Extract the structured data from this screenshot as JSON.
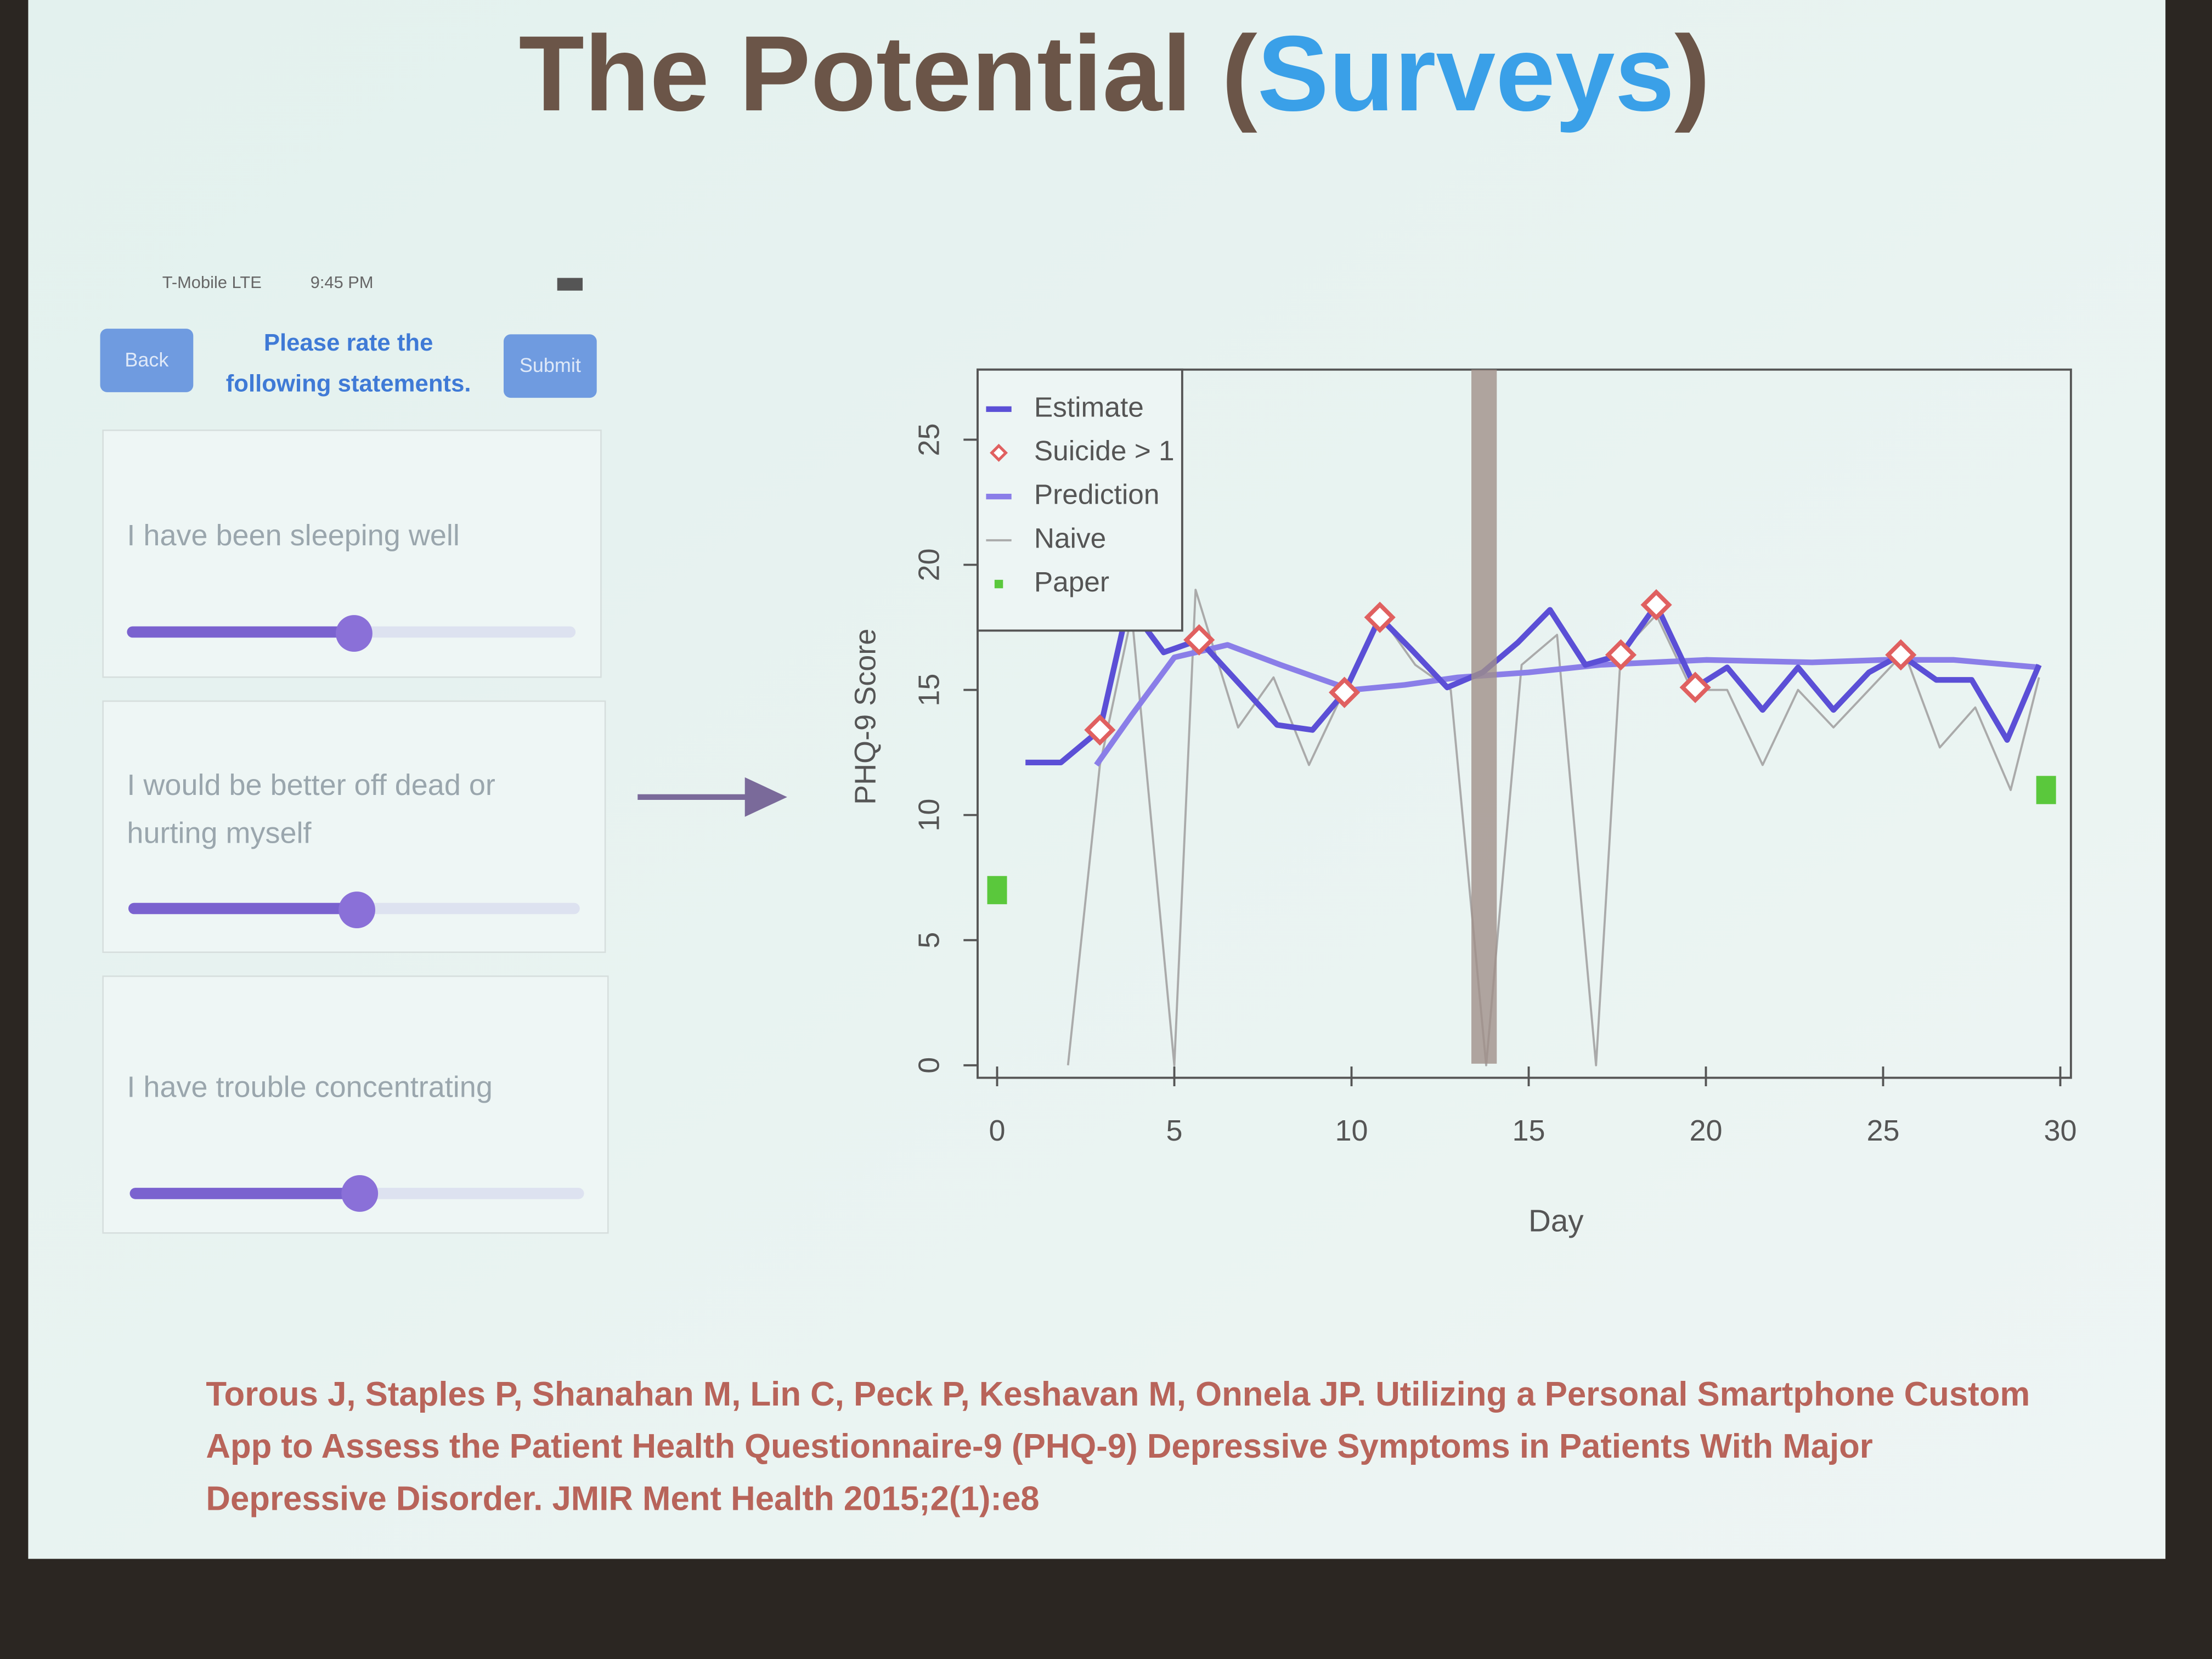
{
  "title_parts": [
    "The Potential (",
    "Surveys",
    ")"
  ],
  "phone": {
    "status": [
      "T-Mobile  LTE",
      "9:45 PM"
    ],
    "back": "Back",
    "submit": "Submit",
    "header": [
      "Please rate the",
      "following statements."
    ],
    "items": [
      [
        "I have been sleeping well"
      ],
      [
        "I would be better off dead or",
        "hurting myself"
      ],
      [
        "I have trouble concentrating"
      ]
    ]
  },
  "chart_data": {
    "type": "line",
    "xlabel": "Day",
    "ylabel": "PHQ-9 Score",
    "xlim": [
      -0.55,
      30.3
    ],
    "ylim": [
      -0.5,
      27.8
    ],
    "xticks": [
      0,
      5,
      10,
      15,
      20,
      25,
      30
    ],
    "yticks": [
      0,
      5,
      10,
      15,
      20,
      25
    ],
    "legend": "top-left",
    "series": [
      {
        "name": "Estimate",
        "color": "#5b4fd6",
        "mark": "line",
        "x": [
          0.8,
          1.8,
          2.9,
          3.7,
          4.7,
          5.7,
          7.9,
          8.9,
          9.8,
          10.8,
          11.7,
          12.7,
          13.7,
          14.7,
          15.6,
          16.6,
          17.6,
          18.6,
          19.7,
          20.6,
          21.6,
          22.6,
          23.6,
          24.6,
          25.5,
          26.5,
          27.5,
          28.5,
          29.4
        ],
        "values": [
          12.1,
          12.1,
          13.4,
          18.4,
          16.5,
          17.0,
          13.6,
          13.4,
          14.9,
          17.9,
          16.6,
          15.1,
          15.7,
          16.9,
          18.2,
          16.0,
          16.4,
          18.4,
          15.1,
          15.9,
          14.2,
          15.9,
          14.2,
          15.7,
          16.4,
          15.4,
          15.4,
          13.0,
          16.0
        ]
      },
      {
        "name": "Suicide > 1",
        "color": "#e06060",
        "mark": "diamond",
        "x": [
          2.9,
          5.7,
          9.8,
          10.8,
          17.6,
          18.6,
          19.7,
          25.5
        ],
        "values": [
          13.4,
          17.0,
          14.9,
          17.9,
          16.4,
          18.4,
          15.1,
          16.4
        ]
      },
      {
        "name": "Prediction",
        "color": "#8a7ee8",
        "mark": "line",
        "x": [
          2.8,
          3.8,
          5,
          6.5,
          8,
          10,
          11.5,
          13,
          15,
          17,
          20,
          23,
          25,
          27,
          29.4
        ],
        "values": [
          12,
          14,
          16.3,
          16.8,
          16,
          15,
          15.2,
          15.5,
          15.7,
          16,
          16.2,
          16.1,
          16.2,
          16.2,
          15.9
        ]
      },
      {
        "name": "Naive",
        "color": "#aaaaaa",
        "mark": "line",
        "x": [
          2,
          2.9,
          3.8,
          5,
          5.6,
          6.8,
          7.8,
          8.8,
          9.8,
          10.8,
          11.8,
          12.8,
          13.8,
          14.8,
          15.8,
          16.9,
          17.6,
          18.6,
          19.6,
          20.6,
          21.6,
          22.6,
          23.6,
          24.6,
          25.6,
          26.6,
          27.6,
          28.6,
          29.4
        ],
        "values": [
          0,
          12,
          18,
          0,
          19,
          13.5,
          15.5,
          12,
          15,
          18,
          16,
          15,
          0,
          16,
          17.2,
          0,
          16.5,
          18,
          15,
          15,
          12,
          15,
          13.5,
          15,
          16.5,
          12.7,
          14.3,
          11,
          15.5
        ]
      },
      {
        "name": "Paper",
        "color": "#5ac83c",
        "mark": "square",
        "x": [
          0,
          29.6
        ],
        "values": [
          7,
          11
        ]
      }
    ]
  },
  "citation": [
    "Torous J, Staples P, Shanahan M, Lin C, Peck P, Keshavan M, Onnela JP. Utilizing a Personal Smartphone Custom",
    "App to Assess the Patient Health Questionnaire-9 (PHQ-9) Depressive Symptoms in Patients With Major",
    "Depressive Disorder. JMIR Ment Health 2015;2(1):e8"
  ]
}
